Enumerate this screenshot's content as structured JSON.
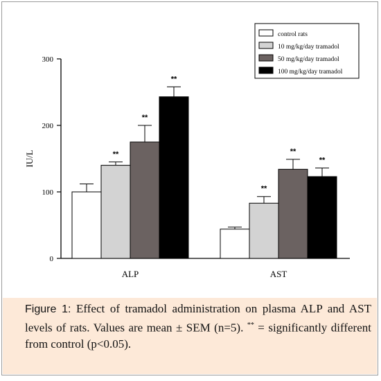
{
  "chart_data": {
    "type": "bar",
    "categories": [
      "ALP",
      "AST"
    ],
    "ylabel": "IU/L",
    "ylim": [
      0,
      300
    ],
    "yticks": [
      0,
      100,
      200,
      300
    ],
    "legend_position": "top-right",
    "series": [
      {
        "name": "control rats",
        "color": "#ffffff",
        "values": [
          100,
          44
        ],
        "errors": [
          12,
          3
        ],
        "marks": [
          "",
          ""
        ]
      },
      {
        "name": "10 mg/kg/day tramadol",
        "color": "#d3d3d3",
        "values": [
          140,
          83
        ],
        "errors": [
          5,
          10
        ],
        "marks": [
          "**",
          "**"
        ]
      },
      {
        "name": "50 mg/kg/day tramadol",
        "color": "#6b6261",
        "values": [
          175,
          134
        ],
        "errors": [
          25,
          15
        ],
        "marks": [
          "**",
          "**"
        ]
      },
      {
        "name": "100 mg/kg/day tramadol",
        "color": "#000000",
        "values": [
          243,
          123
        ],
        "errors": [
          15,
          13
        ],
        "marks": [
          "**",
          "**"
        ]
      }
    ]
  },
  "caption": {
    "label": "Figure 1:",
    "text_before": " Effect of tramadol administration on plasma ALP and AST levels of rats. Values are mean ± SEM (n=5). ",
    "marker": "**",
    "text_after": " = significantly different from control (p<0.05)."
  }
}
